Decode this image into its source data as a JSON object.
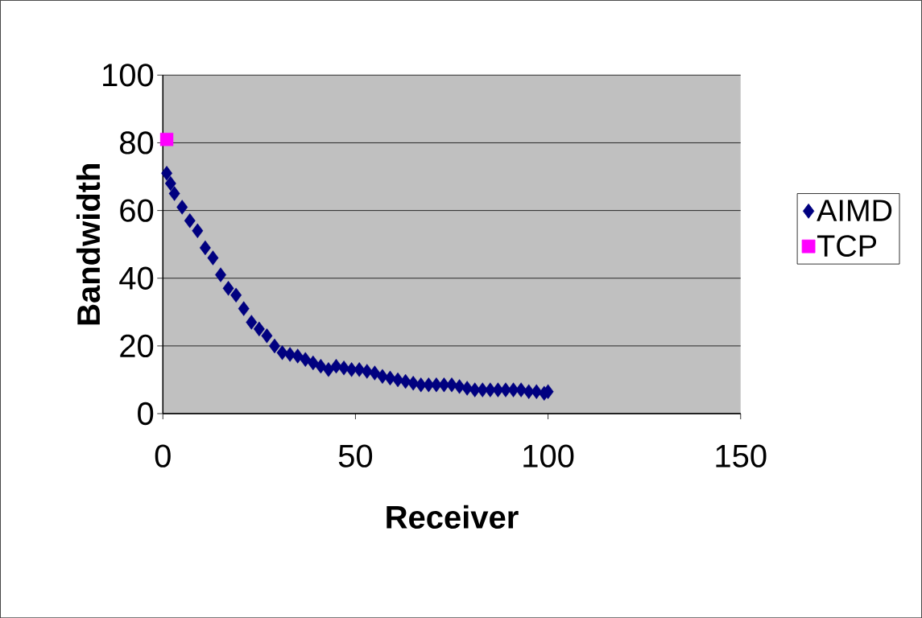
{
  "chart_data": {
    "type": "scatter",
    "xlabel": "Receiver",
    "ylabel": "Bandwidth",
    "xlim": [
      0,
      150
    ],
    "xticks": [
      0,
      50,
      100,
      150
    ],
    "ylim": [
      0,
      100
    ],
    "yticks": [
      0,
      20,
      40,
      60,
      80,
      100
    ],
    "grid": "y",
    "legend": "right",
    "series": [
      {
        "name": "AIMD",
        "color": "#000080",
        "marker": "diamond",
        "x": [
          1,
          2,
          3,
          5,
          7,
          9,
          11,
          13,
          15,
          17,
          19,
          21,
          23,
          25,
          27,
          29,
          31,
          33,
          35,
          37,
          39,
          41,
          43,
          45,
          47,
          49,
          51,
          53,
          55,
          57,
          59,
          61,
          63,
          65,
          67,
          69,
          71,
          73,
          75,
          77,
          79,
          81,
          83,
          85,
          87,
          89,
          91,
          93,
          95,
          97,
          99,
          100
        ],
        "values": [
          71,
          68,
          65,
          61,
          57,
          54,
          49,
          46,
          41,
          37,
          35,
          31,
          27,
          25,
          23,
          20,
          18,
          17.5,
          17,
          16,
          15,
          14,
          13,
          14,
          13.5,
          13,
          13,
          12.5,
          12,
          11,
          10.5,
          10,
          9.5,
          9,
          8.5,
          8.5,
          8.5,
          8.5,
          8.5,
          8,
          7.5,
          7,
          7,
          7,
          7,
          7,
          7,
          7,
          6.5,
          6.5,
          6,
          6.5
        ]
      },
      {
        "name": "TCP",
        "color": "#ff00ff",
        "marker": "square",
        "x": [
          1
        ],
        "values": [
          81
        ]
      }
    ]
  }
}
